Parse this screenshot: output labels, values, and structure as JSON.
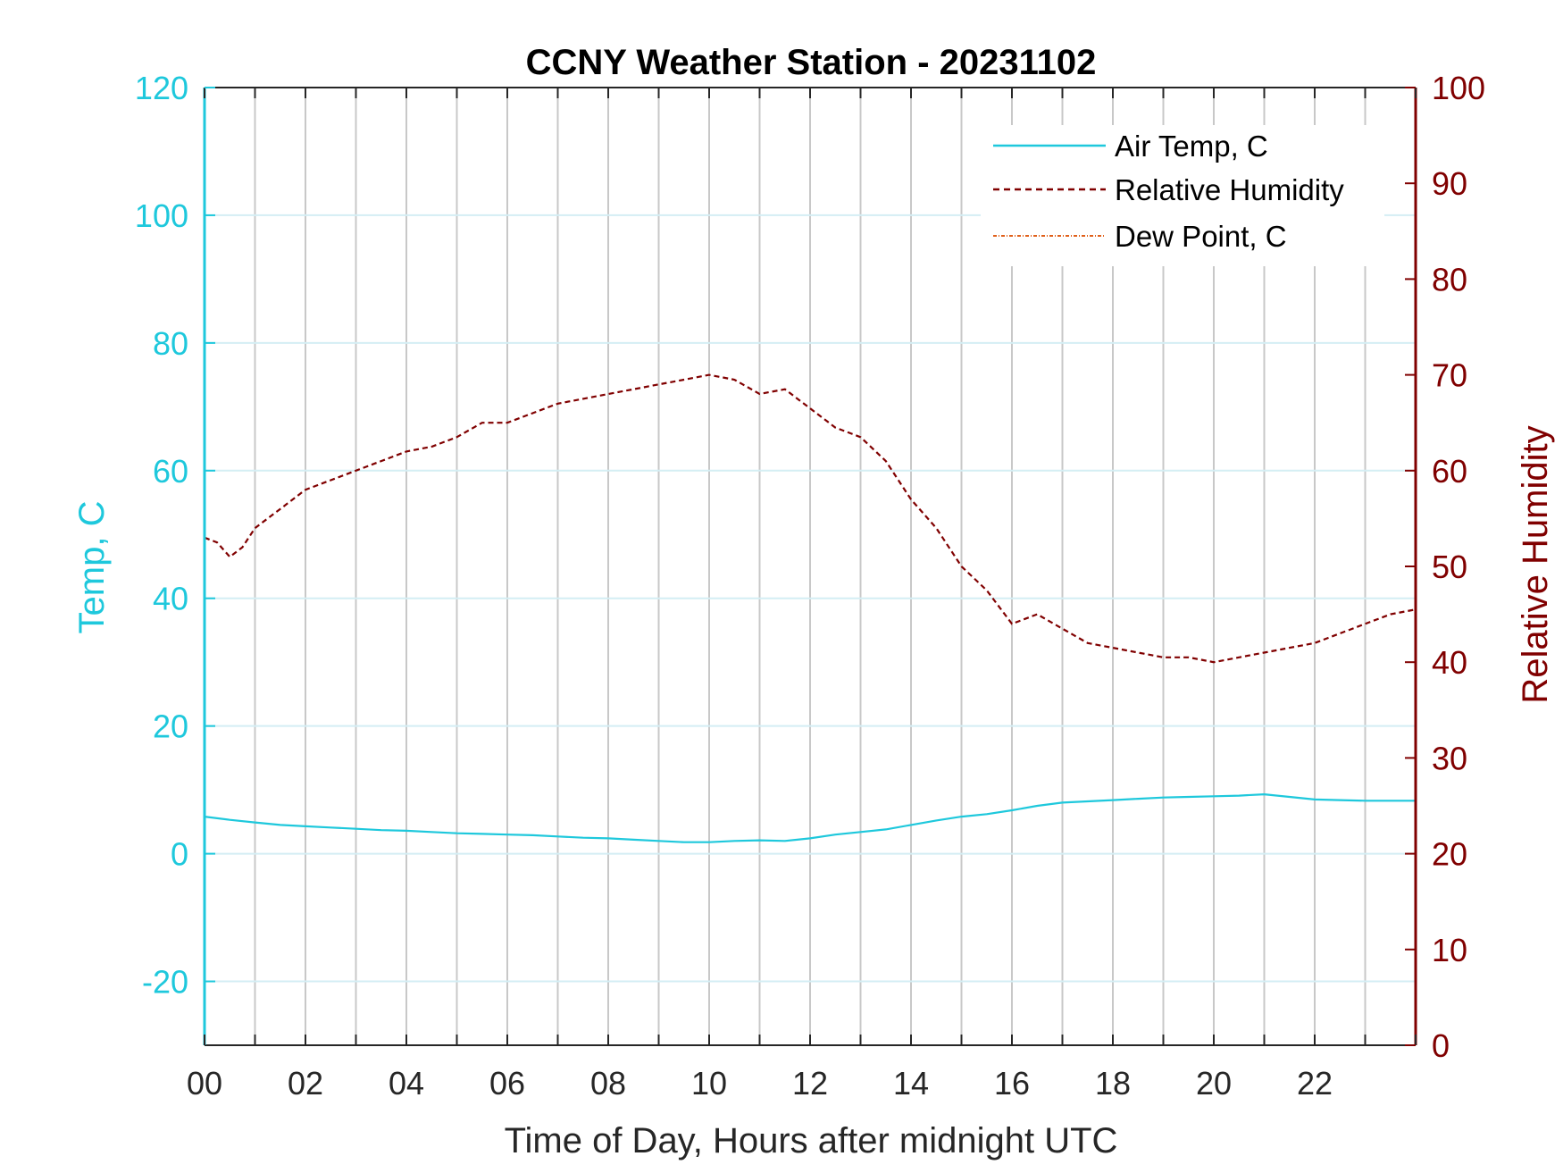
{
  "chart_data": {
    "type": "line",
    "title": "CCNY Weather Station - 20231102",
    "xlabel": "Time of Day, Hours after midnight UTC",
    "ylabel_left": "Temp, C",
    "ylabel_right": "Relative Humidity",
    "xlim": [
      0,
      24
    ],
    "ylim_left": [
      -30,
      120
    ],
    "ylim_right": [
      0,
      100
    ],
    "x_ticks": [
      0,
      2,
      4,
      6,
      8,
      10,
      12,
      14,
      16,
      18,
      20,
      22
    ],
    "x_tick_labels": [
      "00",
      "02",
      "04",
      "06",
      "08",
      "10",
      "12",
      "14",
      "16",
      "18",
      "20",
      "22"
    ],
    "y_left_ticks": [
      -20,
      0,
      20,
      40,
      60,
      80,
      100,
      120
    ],
    "y_left_tick_labels": [
      "-20",
      "0",
      "20",
      "40",
      "60",
      "80",
      "100",
      "120"
    ],
    "y_right_ticks": [
      0,
      10,
      20,
      30,
      40,
      50,
      60,
      70,
      80,
      90,
      100
    ],
    "y_right_tick_labels": [
      "0",
      "10",
      "20",
      "30",
      "40",
      "50",
      "60",
      "70",
      "80",
      "90",
      "100"
    ],
    "grid": true,
    "legend_position": "top-right",
    "colors": {
      "left_axis": "#1ec8dc",
      "right_axis": "#800000",
      "air_temp": "#1ec8dc",
      "humidity": "#800000",
      "dew_point": "#e0601a",
      "vgrid": "#c8c8c8",
      "hgrid": "#d4eef4"
    },
    "series": [
      {
        "name": "Air Temp, C",
        "axis": "left",
        "style": "solid",
        "x": [
          0,
          0.5,
          1,
          1.5,
          2,
          2.5,
          3,
          3.5,
          4,
          4.5,
          5,
          5.5,
          6,
          6.5,
          7,
          7.5,
          8,
          8.5,
          9,
          9.5,
          10,
          10.5,
          11,
          11.5,
          12,
          12.5,
          13,
          13.5,
          14,
          14.5,
          15,
          15.5,
          16,
          16.5,
          17,
          17.5,
          18,
          18.5,
          19,
          19.5,
          20,
          20.5,
          21,
          21.5,
          22,
          22.5,
          23,
          23.5,
          24
        ],
        "values": [
          5.8,
          5.3,
          4.9,
          4.5,
          4.3,
          4.1,
          3.9,
          3.7,
          3.6,
          3.4,
          3.2,
          3.1,
          3.0,
          2.9,
          2.7,
          2.5,
          2.4,
          2.2,
          2.0,
          1.8,
          1.8,
          2.0,
          2.1,
          2.0,
          2.4,
          3.0,
          3.4,
          3.8,
          4.5,
          5.2,
          5.8,
          6.2,
          6.8,
          7.5,
          8.0,
          8.2,
          8.4,
          8.6,
          8.8,
          8.9,
          9.0,
          9.1,
          9.3,
          8.9,
          8.5,
          8.4,
          8.3,
          8.3,
          8.3
        ]
      },
      {
        "name": "Relative Humidity",
        "axis": "right",
        "style": "dashed",
        "x": [
          0,
          0.25,
          0.5,
          0.75,
          1,
          1.5,
          2,
          2.5,
          3,
          3.5,
          4,
          4.5,
          5,
          5.5,
          6,
          6.5,
          7,
          7.5,
          8,
          8.5,
          9,
          9.5,
          10,
          10.5,
          11,
          11.5,
          12,
          12.5,
          13,
          13.5,
          14,
          14.5,
          15,
          15.5,
          16,
          16.5,
          17,
          17.5,
          18,
          18.5,
          19,
          19.5,
          20,
          20.5,
          21,
          21.5,
          22,
          22.5,
          23,
          23.5,
          24
        ],
        "values": [
          53,
          52.5,
          51,
          52,
          54,
          56,
          58,
          59,
          60,
          61,
          62,
          62.5,
          63.5,
          65,
          65,
          66,
          67,
          67.5,
          68,
          68.5,
          69,
          69.5,
          70,
          69.5,
          68,
          68.5,
          66.5,
          64.5,
          63.5,
          61,
          57,
          54,
          50,
          47.5,
          44,
          45,
          43.5,
          42,
          41.5,
          41,
          40.5,
          40.5,
          40,
          40.5,
          41,
          41.5,
          42,
          43,
          44,
          45,
          45.5
        ]
      },
      {
        "name": "Dew Point, C",
        "axis": "left",
        "style": "dash-dot",
        "x": [],
        "values": []
      }
    ]
  }
}
